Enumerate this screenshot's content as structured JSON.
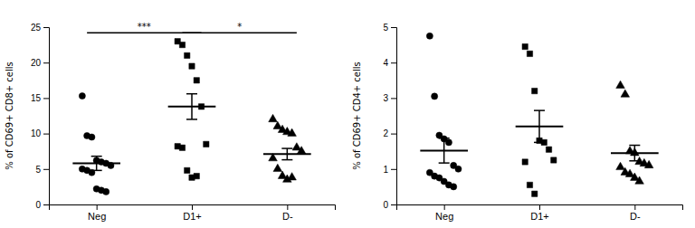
{
  "chart_data": [
    {
      "type": "strip",
      "y_label": "% of CD69+ CD8+ cells",
      "color": "#000000",
      "ylim": [
        0,
        25
      ],
      "yticks": [
        0,
        5,
        10,
        15,
        20,
        25
      ],
      "series": [
        {
          "name": "Neg",
          "marker": "circle",
          "values": [
            15.3,
            9.7,
            9.5,
            6.2,
            6.0,
            5.8,
            5.5,
            5.0,
            4.8,
            4.5,
            2.2,
            2.0,
            1.8
          ],
          "mean": 5.8,
          "error": 1.0
        },
        {
          "name": "D1+",
          "marker": "square",
          "values": [
            23.0,
            22.5,
            21.0,
            19.5,
            17.5,
            13.8,
            8.5,
            8.2,
            8.0,
            4.8,
            3.8,
            4.0
          ],
          "mean": 13.8,
          "error": 1.8
        },
        {
          "name": "D-",
          "marker": "triangle",
          "values": [
            12.0,
            11.0,
            10.5,
            10.2,
            10.0,
            8.0,
            7.5,
            6.5,
            5.0,
            4.0,
            3.5,
            3.8
          ],
          "mean": 7.1,
          "error": 0.8
        }
      ],
      "annotations": [
        {
          "text": "***",
          "from": "Neg",
          "to": "D1+",
          "y": 24.2
        },
        {
          "text": "*",
          "from": "D1+",
          "to": "D-",
          "y": 24.2
        }
      ]
    },
    {
      "type": "strip",
      "y_label": "% of CD69+ CD4+ cells",
      "color": "#000000",
      "ylim": [
        0,
        5
      ],
      "yticks": [
        0,
        1,
        2,
        3,
        4,
        5
      ],
      "series": [
        {
          "name": "Neg",
          "marker": "circle",
          "values": [
            4.75,
            3.05,
            1.95,
            1.85,
            1.75,
            1.1,
            1.0,
            0.9,
            0.8,
            0.75,
            0.65,
            0.55,
            0.5
          ],
          "mean": 1.52,
          "error": 0.35
        },
        {
          "name": "D1+",
          "marker": "square",
          "values": [
            4.45,
            4.25,
            3.2,
            1.8,
            1.75,
            1.55,
            1.25,
            1.2,
            0.55,
            0.3
          ],
          "mean": 2.2,
          "error": 0.45
        },
        {
          "name": "D-",
          "marker": "triangle",
          "values": [
            3.35,
            3.1,
            1.5,
            1.45,
            1.2,
            1.15,
            1.1,
            1.05,
            0.9,
            0.85,
            0.75,
            0.65
          ],
          "mean": 1.45,
          "error": 0.22
        }
      ]
    }
  ]
}
